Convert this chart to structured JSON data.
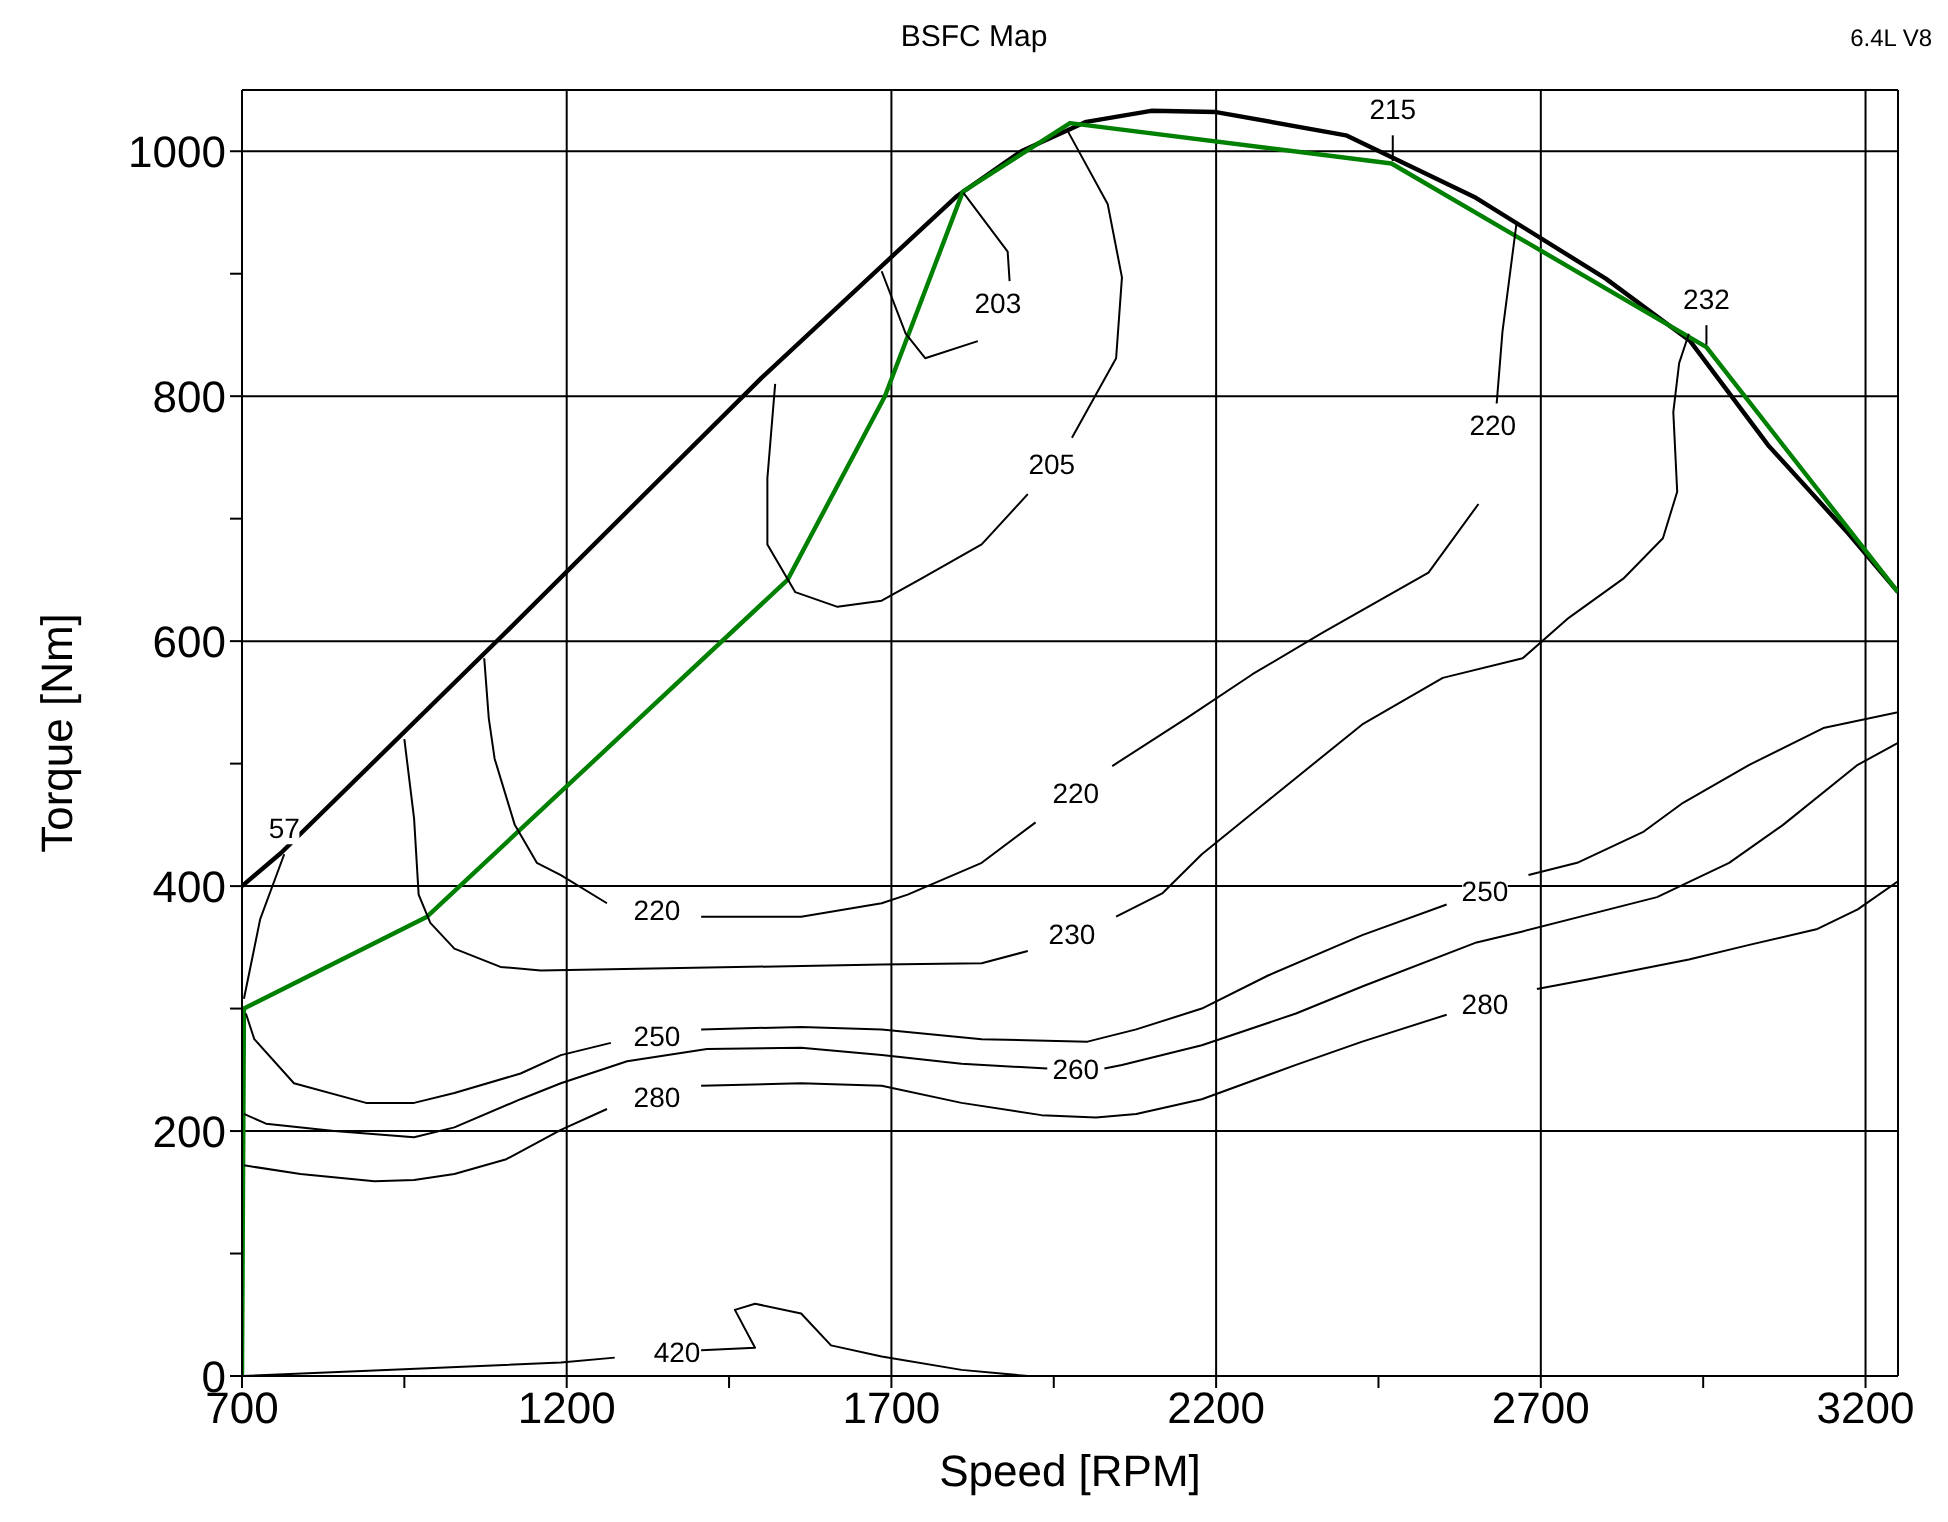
{
  "chart_data": {
    "type": "line",
    "title": "BSFC Map",
    "subtitle": "6.4L V8",
    "xlabel": "Speed [RPM]",
    "ylabel": "Torque [Nm]",
    "xlim": [
      700,
      3250
    ],
    "ylim": [
      0,
      1050
    ],
    "xticks": [
      700,
      {
        "value": 950,
        "label": null
      },
      1200,
      {
        "value": 1450,
        "label": null
      },
      1700,
      {
        "value": 1950,
        "label": null
      },
      2200,
      {
        "value": 2450,
        "label": null
      },
      2700,
      {
        "value": 2950,
        "label": null
      },
      3200
    ],
    "yticks": [
      0,
      {
        "value": 100,
        "label": null
      },
      200,
      {
        "value": 300,
        "label": null
      },
      400,
      {
        "value": 500,
        "label": null
      },
      600,
      {
        "value": 700,
        "label": null
      },
      800,
      {
        "value": 900,
        "label": null
      },
      1000
    ],
    "grid": true,
    "marker": "none",
    "series": [
      {
        "color": "#000000",
        "x": [
          700,
          760,
          1100,
          1500,
          1800,
          1900,
          2000,
          2100,
          2200,
          2400,
          2600,
          2800,
          2930,
          3050,
          3170,
          3250
        ],
        "values": [
          400,
          427,
          604,
          815,
          963,
          1000,
          1024,
          1033,
          1032,
          1013,
          962,
          896,
          845,
          760,
          690,
          640
        ]
      },
      {
        "color": "#008000",
        "x": [
          700,
          703,
          985,
          1540,
          1690,
          1810,
          1975,
          2470,
          2955,
          3250
        ],
        "values": [
          0,
          300,
          375,
          650,
          800,
          967,
          1023,
          990,
          840,
          640
        ]
      },
      {
        "name": "203",
        "color": "#000000",
        "x": [
          1811,
          1879,
          1882,
          1864,
          1833,
          1752,
          1722,
          1685
        ],
        "values": [
          966,
          918,
          894,
          null,
          845,
          831,
          851,
          902
        ]
      },
      {
        "name": "205",
        "color": "#000000",
        "x": [
          1972,
          2033,
          2055,
          2046,
          1978,
          1947,
          1910,
          1839,
          1746,
          1685,
          1617,
          1552,
          1509,
          1509,
          1521
        ],
        "values": [
          1016,
          957,
          897,
          831,
          766,
          null,
          720,
          679,
          651,
          633,
          628,
          640,
          679,
          733,
          810
        ]
      },
      {
        "name": "215",
        "color": "#000000",
        "x": [
          2472,
          2472
        ],
        "values": [
          1013,
          992
        ]
      },
      {
        "name": "232",
        "color": "#000000",
        "x": [
          2955,
          2955
        ],
        "values": [
          858,
          842
        ]
      },
      {
        "name": "220",
        "color": "#000000",
        "x": [
          2663,
          2641,
          2632,
          2626,
          2604,
          2527,
          2364,
          2256,
          2154,
          2040,
          1984,
          1922,
          1839,
          1725,
          1685,
          1561,
          1407,
          1339,
          1262,
          1191,
          1154,
          1120,
          1089,
          1080,
          1073
        ],
        "values": [
          943,
          853,
          794,
          null,
          712,
          656,
          607,
          573,
          537,
          498,
          null,
          452,
          419,
          393,
          386,
          375,
          375,
          null,
          386,
          409,
          419,
          450,
          504,
          537,
          586
        ]
      },
      {
        "name": "230",
        "color": "#000000",
        "x": [
          950,
          965,
          972,
          990,
          1027,
          1098,
          1160,
          1685,
          1839,
          1910,
          1978,
          2046,
          2117,
          2178,
          2271,
          2425,
          2549,
          2672,
          2743,
          2827,
          2888,
          2910,
          2904,
          2913,
          2928
        ],
        "values": [
          520,
          455,
          393,
          370,
          349,
          334,
          331,
          336,
          337,
          347,
          null,
          375,
          394,
          426,
          466,
          532,
          570,
          586,
          619,
          651,
          684,
          722,
          787,
          827,
          851
        ]
      },
      {
        "name": "250",
        "color": "#000000",
        "x": [
          706,
          719,
          780,
          891,
          965,
          1027,
          1129,
          1191,
          1268,
          1339,
          1407,
          1561,
          1685,
          1839,
          2002,
          2077,
          2178,
          2280,
          2425,
          2555,
          2614,
          2681,
          2756,
          2857,
          2919,
          3021,
          3135,
          3250
        ],
        "values": [
          296,
          275,
          239,
          223,
          223,
          231,
          247,
          262,
          272,
          null,
          283,
          285,
          283,
          275,
          273,
          283,
          300,
          327,
          360,
          385,
          null,
          409,
          419,
          444,
          468,
          499,
          529,
          542
        ]
      },
      {
        "name": "260",
        "color": "#000000",
        "x": [
          703,
          737,
          842,
          965,
          1027,
          1129,
          1191,
          1293,
          1416,
          1561,
          1685,
          1808,
          1940,
          1984,
          2028,
          2055,
          2178,
          2323,
          2425,
          2601,
          2672,
          2879,
          2990,
          3073,
          3188,
          3250
        ],
        "values": [
          214,
          206,
          200,
          195,
          203,
          226,
          239,
          257,
          267,
          268,
          262,
          255,
          251,
          null,
          251,
          254,
          270,
          296,
          318,
          354,
          363,
          391,
          419,
          450,
          499,
          517
        ]
      },
      {
        "name": "280",
        "color": "#000000",
        "x": [
          703,
          790,
          904,
          965,
          1027,
          1107,
          1191,
          1262,
          1339,
          1407,
          1561,
          1685,
          1808,
          1931,
          2015,
          2077,
          2178,
          2323,
          2425,
          2555,
          2614,
          2694,
          2774,
          2928,
          3021,
          3126,
          3188,
          3250
        ],
        "values": [
          172,
          165,
          159,
          160,
          165,
          177,
          201,
          218,
          null,
          237,
          239,
          237,
          223,
          213,
          211,
          214,
          226,
          254,
          273,
          295,
          null,
          316,
          324,
          340,
          352,
          365,
          381,
          404
        ]
      },
      {
        "name": "57",
        "color": "#000000",
        "x": [
          765,
          728,
          703
        ],
        "values": [
          426,
          373,
          308
        ]
      },
      {
        "name": "420",
        "color": "#000000",
        "x": [
          700,
          922,
          1191,
          1274,
          1370,
          1407,
          1490,
          1459,
          1490,
          1561,
          1607,
          1685,
          1808,
          1910
        ],
        "values": [
          0,
          5,
          11,
          15,
          null,
          21,
          23,
          54,
          59,
          51,
          25,
          16,
          5,
          0
        ]
      }
    ]
  }
}
